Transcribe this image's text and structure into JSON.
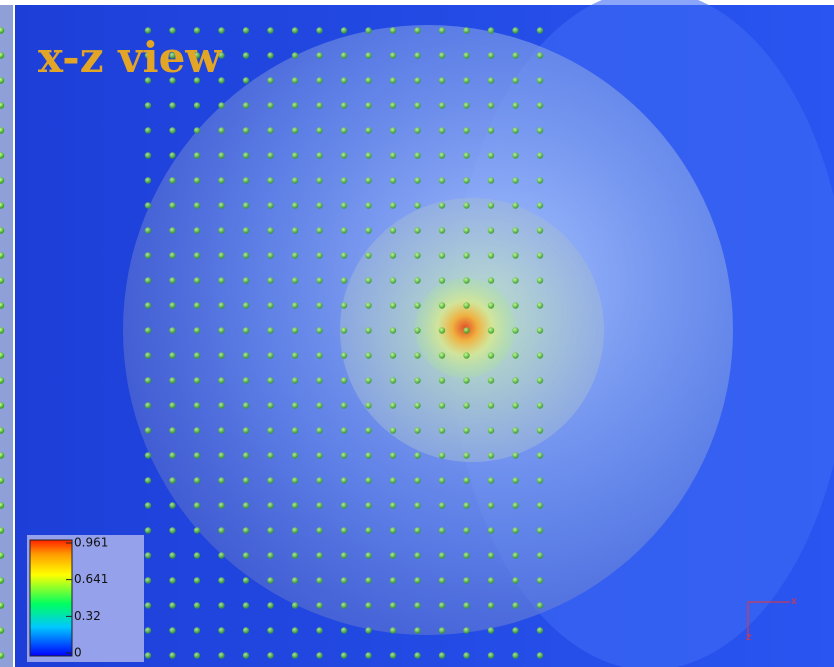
{
  "title": "x-z view",
  "colorbar": {
    "ticks": [
      0.961,
      0.641,
      0.32,
      0
    ]
  },
  "axes_triad": {
    "x_label": "x",
    "z_label": "z"
  }
}
